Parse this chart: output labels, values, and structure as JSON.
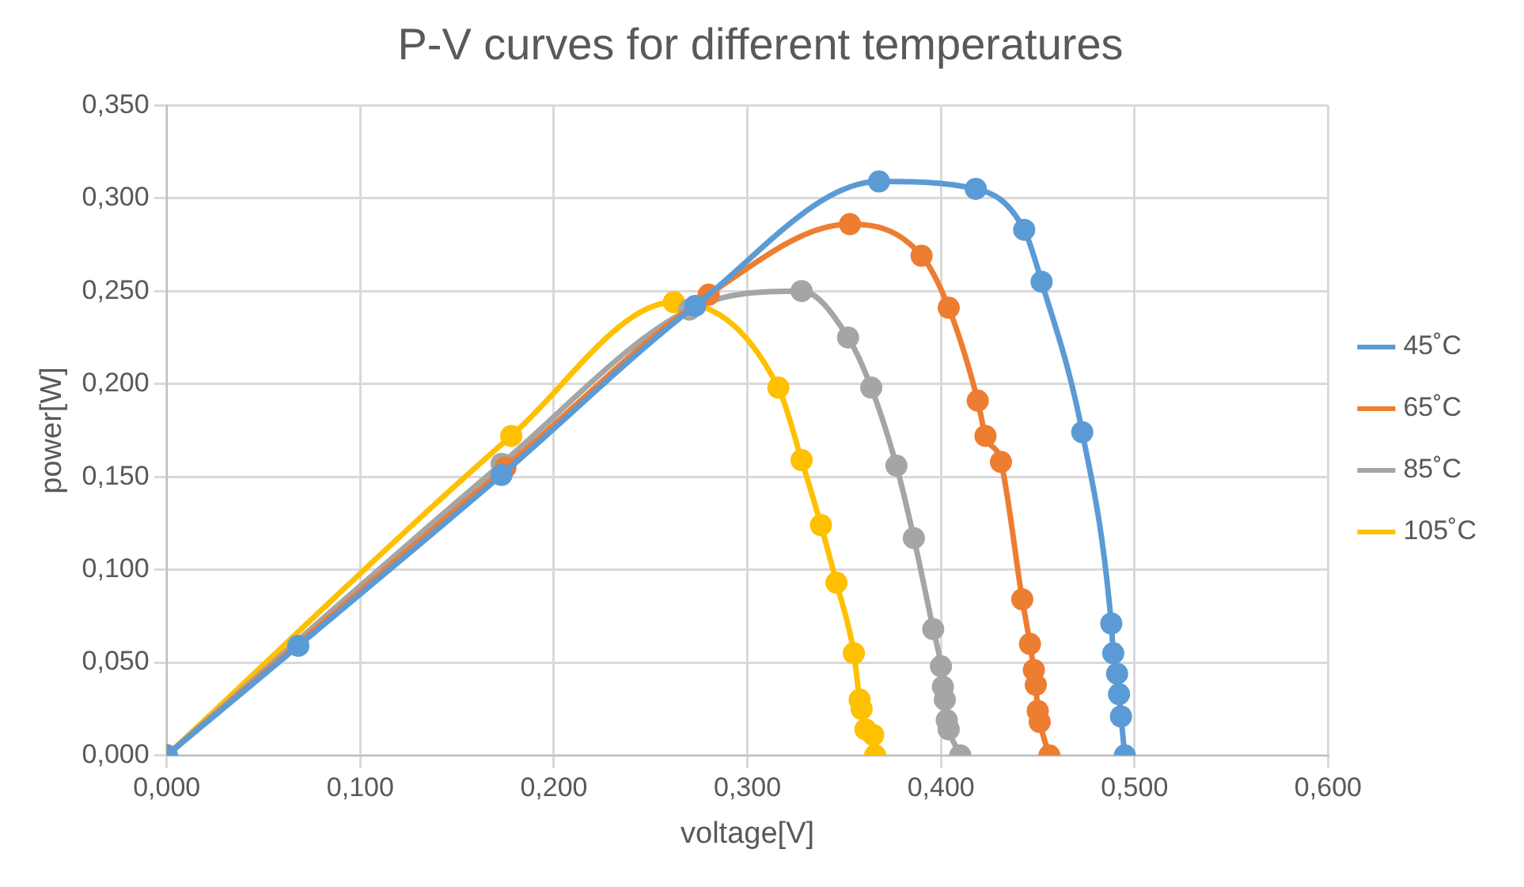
{
  "chart_data": {
    "type": "line",
    "title": "P-V curves for different temperatures",
    "xlabel": "voltage[V]",
    "ylabel": "power[W]",
    "xlim": [
      0,
      0.6
    ],
    "ylim": [
      0,
      0.35
    ],
    "xticks": [
      {
        "value": 0,
        "label": "0,000"
      },
      {
        "value": 0.1,
        "label": "0,100"
      },
      {
        "value": 0.2,
        "label": "0,200"
      },
      {
        "value": 0.3,
        "label": "0,300"
      },
      {
        "value": 0.4,
        "label": "0,400"
      },
      {
        "value": 0.5,
        "label": "0,500"
      },
      {
        "value": 0.6,
        "label": "0,600"
      }
    ],
    "yticks": [
      {
        "value": 0,
        "label": "0,000"
      },
      {
        "value": 0.05,
        "label": "0,050"
      },
      {
        "value": 0.1,
        "label": "0,100"
      },
      {
        "value": 0.15,
        "label": "0,150"
      },
      {
        "value": 0.2,
        "label": "0,200"
      },
      {
        "value": 0.25,
        "label": "0,250"
      },
      {
        "value": 0.3,
        "label": "0,300"
      },
      {
        "value": 0.35,
        "label": "0,350"
      }
    ],
    "grid": true,
    "legend": "right",
    "marker": "circle",
    "line_style": "solid",
    "series": [
      {
        "name": "45˚C",
        "color": "#5b9bd5",
        "x": [
          0,
          0.068,
          0.173,
          0.273,
          0.368,
          0.418,
          0.443,
          0.452,
          0.473,
          0.488,
          0.489,
          0.491,
          0.492,
          0.493,
          0.495
        ],
        "values": [
          0,
          0.059,
          0.151,
          0.242,
          0.309,
          0.305,
          0.283,
          0.255,
          0.174,
          0.071,
          0.055,
          0.044,
          0.033,
          0.021,
          0
        ]
      },
      {
        "name": "65˚C",
        "color": "#ed7d31",
        "x": [
          0,
          0.175,
          0.28,
          0.353,
          0.39,
          0.404,
          0.419,
          0.423,
          0.431,
          0.442,
          0.446,
          0.448,
          0.449,
          0.45,
          0.451,
          0.456
        ],
        "values": [
          0,
          0.155,
          0.248,
          0.286,
          0.269,
          0.241,
          0.191,
          0.172,
          0.158,
          0.084,
          0.06,
          0.046,
          0.038,
          0.024,
          0.018,
          0
        ]
      },
      {
        "name": "85˚C",
        "color": "#a5a5a5",
        "x": [
          0,
          0.173,
          0.27,
          0.328,
          0.352,
          0.364,
          0.377,
          0.386,
          0.396,
          0.4,
          0.401,
          0.402,
          0.403,
          0.404,
          0.41
        ],
        "values": [
          0,
          0.157,
          0.24,
          0.25,
          0.225,
          0.198,
          0.156,
          0.117,
          0.068,
          0.048,
          0.037,
          0.03,
          0.019,
          0.014,
          0
        ]
      },
      {
        "name": "105˚C",
        "color": "#ffc000",
        "x": [
          0,
          0.178,
          0.262,
          0.316,
          0.328,
          0.338,
          0.346,
          0.355,
          0.358,
          0.359,
          0.361,
          0.365,
          0.366
        ],
        "values": [
          0,
          0.172,
          0.244,
          0.198,
          0.159,
          0.124,
          0.093,
          0.055,
          0.03,
          0.025,
          0.014,
          0.011,
          0
        ]
      }
    ]
  }
}
